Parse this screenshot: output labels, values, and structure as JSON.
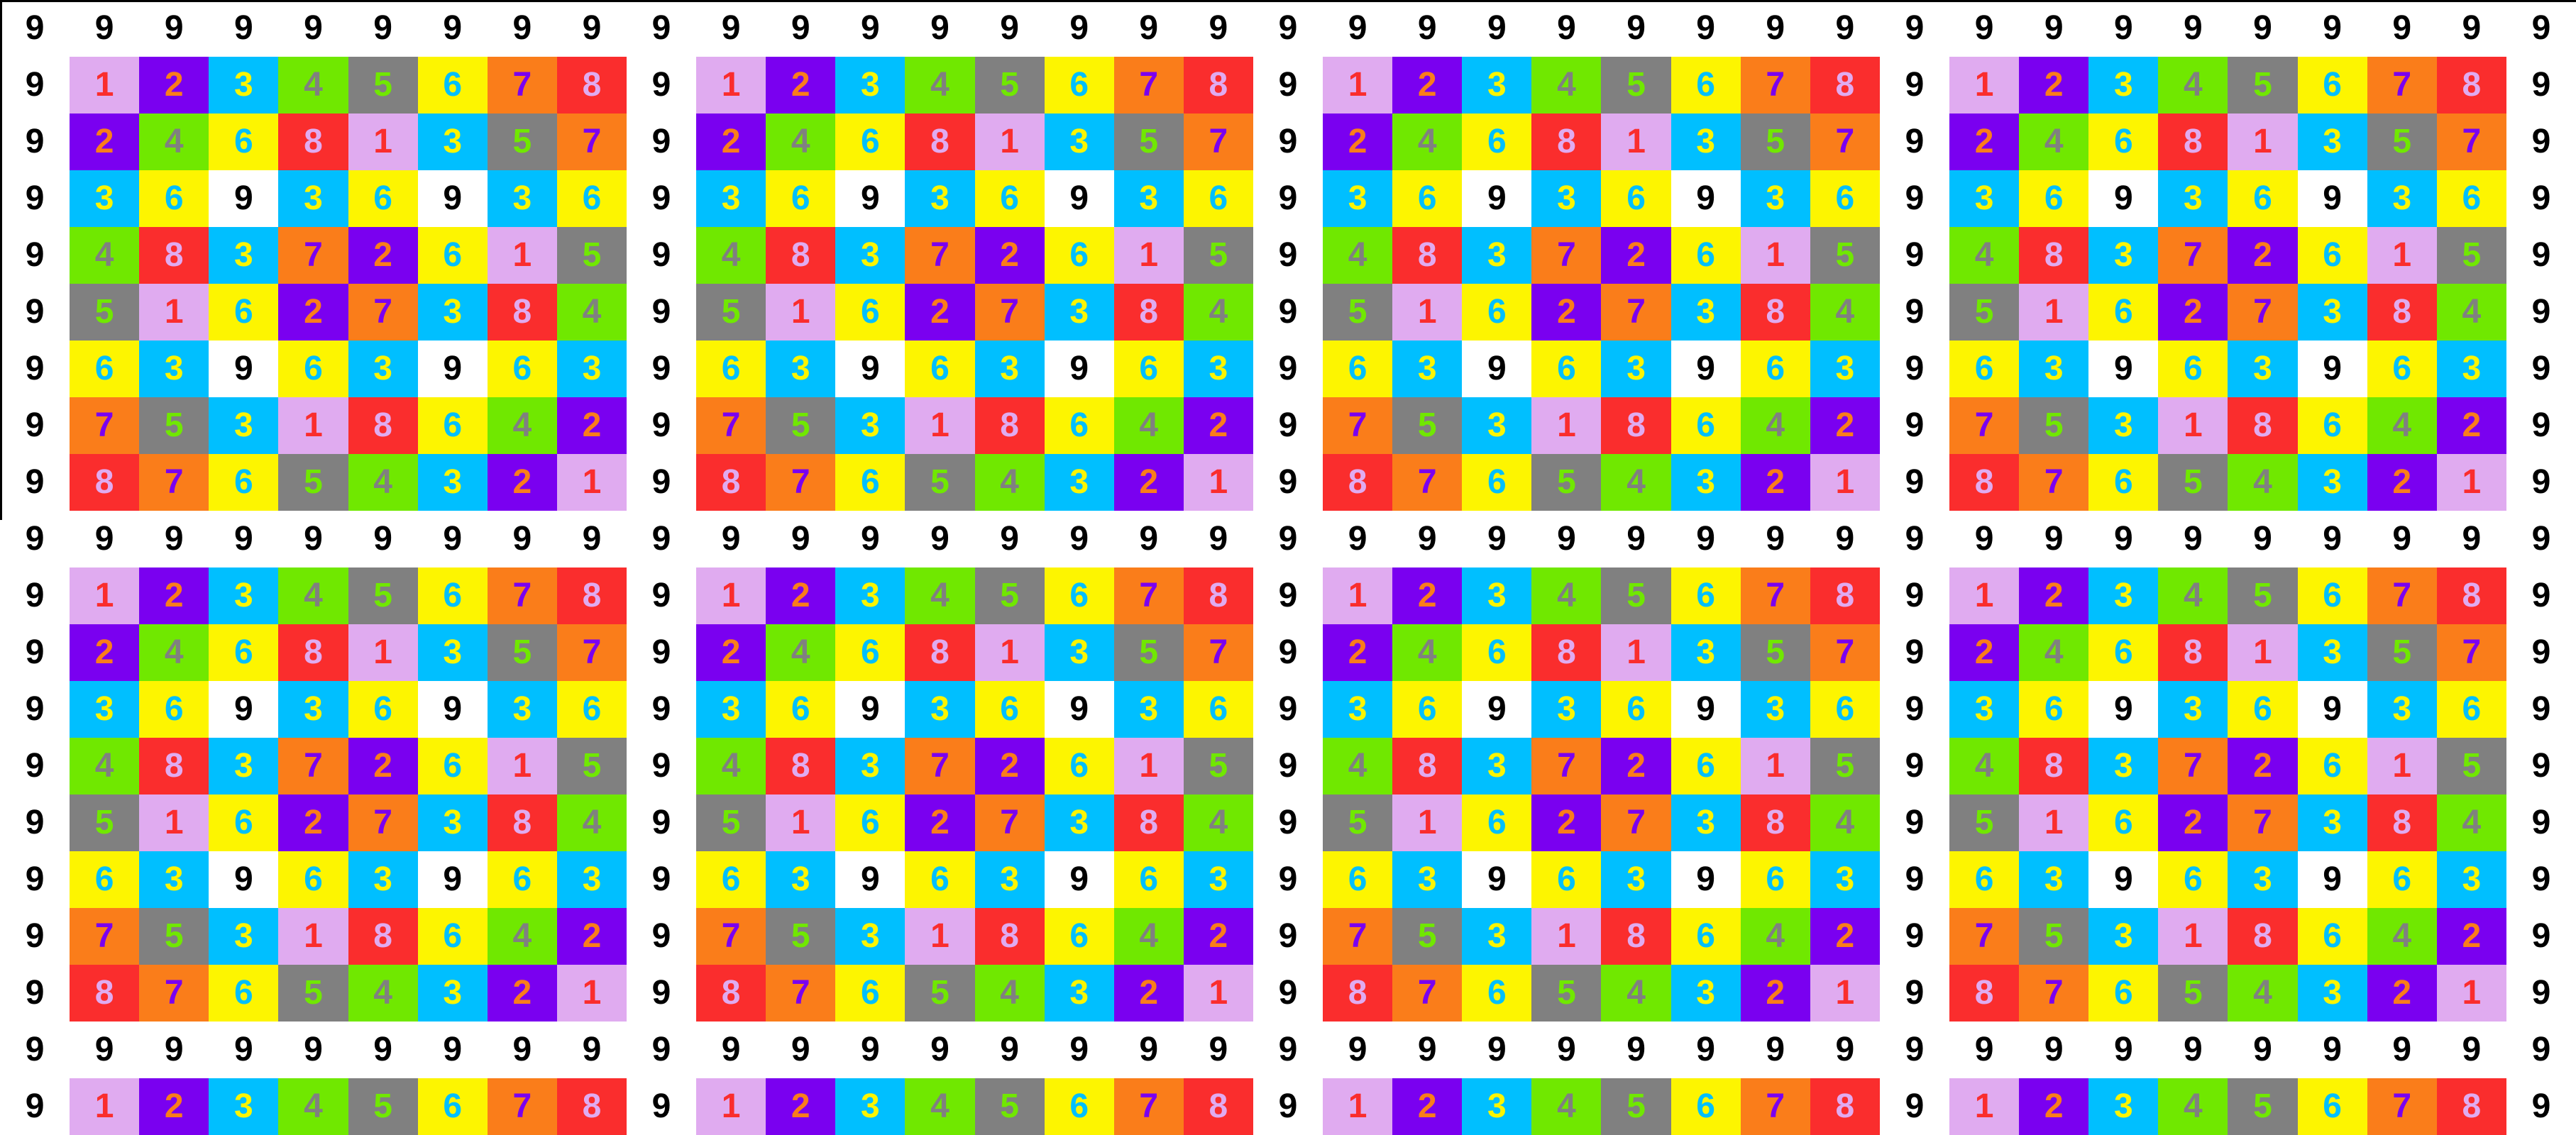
{
  "grid": {
    "columns": 37,
    "visible_rows": 20,
    "rows": [
      "9999999999999999999999999999999999999",
      "9123456789123456789123456789123456789",
      "9246813579246813579246813579246813579",
      "9369369369369369369369369369369369369",
      "9483726159483726159483726159483726159",
      "9516273849516273849516273849516273849",
      "9639639639639639639639639639639639639",
      "9753186429753186429753186429753186429",
      "9876543219876543219876543219876543219",
      "9999999999999999999999999999999999999",
      "9123456789123456789123456789123456789",
      "9246813579246813579246813579246813579",
      "9369369369369369369369369369369369369",
      "9483726159483726159483726159483726159",
      "9516273849516273849516273849516273849",
      "9639639639639639639639639639639639639",
      "9753186429753186429753186429753186429",
      "9876543219876543219876543219876543219",
      "9999999999999999999999999999999999999",
      "9123456789123456789123456789123456789"
    ]
  },
  "palette": {
    "1": {
      "bg": "#E0ABF0",
      "fg": "#FA2D2D"
    },
    "2": {
      "bg": "#7A00F0",
      "fg": "#FA7D1A"
    },
    "3": {
      "bg": "#00BFFF",
      "fg": "#FDF500"
    },
    "4": {
      "bg": "#70E800",
      "fg": "#808080"
    },
    "5": {
      "bg": "#808080",
      "fg": "#70E800"
    },
    "6": {
      "bg": "#FDF500",
      "fg": "#00BFFF"
    },
    "7": {
      "bg": "#FA7D1A",
      "fg": "#7A00F0"
    },
    "8": {
      "bg": "#FA2D2D",
      "fg": "#E0ABF0"
    },
    "9": {
      "bg": "#FFFFFF",
      "fg": "#000000"
    }
  },
  "chart_data": {
    "type": "heatmap",
    "title": "",
    "description": "Digital-root (mod 9) multiplication table: identical 8x8 blocks of digits 1-8 on colored cells, separated by white rows and columns of 9s; 4 blocks across, 2 full block rows plus the top sliver of a third visible",
    "x": [
      1,
      2,
      3,
      4,
      5,
      6,
      7,
      8
    ],
    "y": [
      1,
      2,
      3,
      4,
      5,
      6,
      7,
      8
    ],
    "values": [
      [
        1,
        2,
        3,
        4,
        5,
        6,
        7,
        8
      ],
      [
        2,
        4,
        6,
        8,
        1,
        3,
        5,
        7
      ],
      [
        3,
        6,
        9,
        3,
        6,
        9,
        3,
        6
      ],
      [
        4,
        8,
        3,
        7,
        2,
        6,
        1,
        5
      ],
      [
        5,
        1,
        6,
        2,
        7,
        3,
        8,
        4
      ],
      [
        6,
        3,
        9,
        6,
        3,
        9,
        6,
        3
      ],
      [
        7,
        5,
        3,
        1,
        8,
        6,
        4,
        2
      ],
      [
        8,
        7,
        6,
        5,
        4,
        3,
        2,
        1
      ]
    ],
    "border_value": 9,
    "block_repeat_horizontal": 4,
    "block_repeat_vertical_visible": 3,
    "legend_position": "none",
    "grid_lines": "white rows/columns of 9s act as separators"
  }
}
